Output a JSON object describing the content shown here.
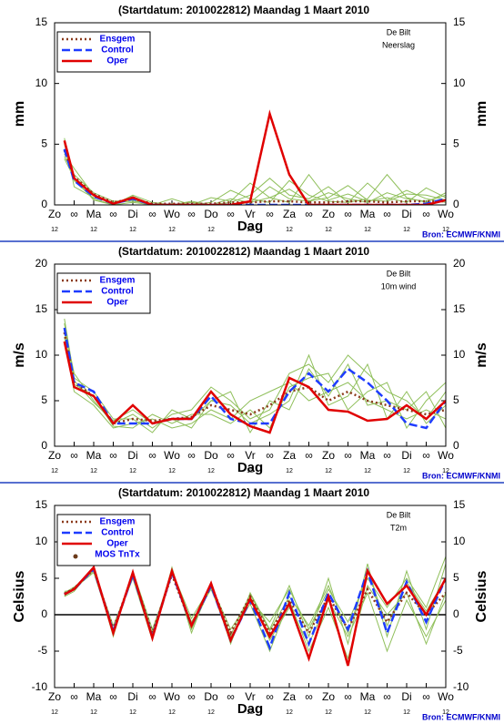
{
  "chart_data": [
    {
      "type": "line",
      "title": "(Startdatum: 2010022812)   Maandag    1 Maart    2010",
      "ylabel": "mm",
      "xlabel": "Dag",
      "source": "Bron: ECMWF/KNMI",
      "annotation": [
        "De Bilt",
        "Neerslag"
      ],
      "xlim": [
        0,
        10
      ],
      "ylim": [
        0,
        15
      ],
      "yticks": [
        0,
        5,
        10,
        15
      ],
      "y2ticks": [
        0,
        5,
        10,
        15
      ],
      "zero_line": false,
      "xticks": [
        {
          "value": 0,
          "label": "Zo"
        },
        {
          "value": 0.5,
          "label": "∞"
        },
        {
          "value": 1,
          "label": "Ma"
        },
        {
          "value": 1.5,
          "label": "∞"
        },
        {
          "value": 2,
          "label": "Di"
        },
        {
          "value": 2.5,
          "label": "∞"
        },
        {
          "value": 3,
          "label": "Wo"
        },
        {
          "value": 3.5,
          "label": "∞"
        },
        {
          "value": 4,
          "label": "Do"
        },
        {
          "value": 4.5,
          "label": "∞"
        },
        {
          "value": 5,
          "label": "Vr"
        },
        {
          "value": 5.5,
          "label": "∞"
        },
        {
          "value": 6,
          "label": "Za"
        },
        {
          "value": 6.5,
          "label": "∞"
        },
        {
          "value": 7,
          "label": "Zo"
        },
        {
          "value": 7.5,
          "label": "∞"
        },
        {
          "value": 8,
          "label": "Ma"
        },
        {
          "value": 8.5,
          "label": "∞"
        },
        {
          "value": 9,
          "label": "Di"
        },
        {
          "value": 9.5,
          "label": "∞"
        },
        {
          "value": 10,
          "label": "Wo"
        }
      ],
      "hour_ticks": [
        {
          "value": 0,
          "label": "12"
        },
        {
          "value": 1,
          "label": "12"
        },
        {
          "value": 2,
          "label": "12"
        },
        {
          "value": 3,
          "label": "12"
        },
        {
          "value": 4,
          "label": "12"
        },
        {
          "value": 5,
          "label": "12"
        },
        {
          "value": 6,
          "label": "12"
        },
        {
          "value": 7,
          "label": "12"
        },
        {
          "value": 8,
          "label": "12"
        },
        {
          "value": 9,
          "label": "12"
        },
        {
          "value": 10,
          "label": "12"
        }
      ],
      "x": [
        0.25,
        0.5,
        1,
        1.5,
        2,
        2.5,
        3,
        3.5,
        4,
        4.5,
        5,
        5.5,
        6,
        6.5,
        7,
        7.5,
        8,
        8.5,
        9,
        9.5,
        10
      ],
      "member_color": "#8fbf5a",
      "members": [
        [
          5,
          2,
          0.5,
          0,
          0.8,
          0.2,
          0,
          0.3,
          0,
          0.5,
          0.2,
          1.5,
          0.5,
          0.3,
          1,
          0.5,
          0.2,
          1,
          0.5,
          0.3,
          0.8
        ],
        [
          4,
          2.5,
          1,
          0.3,
          0.4,
          0,
          0.5,
          0,
          0.2,
          1.2,
          0.5,
          0.2,
          2,
          0.8,
          0.3,
          0.2,
          1.8,
          0.4,
          1.2,
          0.5,
          0.2
        ],
        [
          5.5,
          1.5,
          0.6,
          0.2,
          0.3,
          0.1,
          0,
          0,
          0.6,
          0.3,
          1.8,
          0.6,
          0.2,
          2.5,
          0.4,
          0.9,
          0.3,
          0.6,
          0.2,
          1.4,
          0.6
        ],
        [
          4.2,
          3,
          0.8,
          0.1,
          0.7,
          0,
          0.1,
          0,
          0,
          0.2,
          0.8,
          2.2,
          0.8,
          0.5,
          1.5,
          0.2,
          0.5,
          2.5,
          0.6,
          0.2,
          1
        ],
        [
          3.8,
          2.2,
          0.4,
          0,
          0.2,
          0,
          0,
          0.2,
          0,
          0,
          0.2,
          0.6,
          1.3,
          0.3,
          0.6,
          1.6,
          0.4,
          0.3,
          0.9,
          0.8,
          0.4
        ]
      ],
      "series": [
        {
          "name": "Ensgem",
          "color": "#8b3a1a",
          "style": "dotted",
          "values": [
            4.5,
            2.3,
            0.9,
            0.2,
            0.5,
            0.1,
            0.1,
            0.1,
            0.1,
            0.2,
            0.2,
            0.3,
            0.3,
            0.2,
            0.2,
            0.3,
            0.3,
            0.2,
            0.3,
            0.3,
            0.3
          ]
        },
        {
          "name": "Control",
          "color": "#1e3cff",
          "style": "dashed",
          "values": [
            4.6,
            2.0,
            0.7,
            0.1,
            0.5,
            0,
            0,
            0,
            0,
            0,
            0,
            0,
            0,
            0,
            0,
            0,
            0,
            0,
            0,
            0.1,
            0.5
          ]
        },
        {
          "name": "Oper",
          "color": "#e00000",
          "style": "solid",
          "values": [
            5.3,
            2.2,
            0.8,
            0.1,
            0.6,
            0,
            0,
            0,
            0,
            0,
            0.3,
            7.5,
            2.5,
            0,
            0,
            0,
            0,
            0,
            0,
            0,
            0.4
          ]
        }
      ]
    },
    {
      "type": "line",
      "title": "(Startdatum: 2010022812)   Maandag    1 Maart    2010",
      "ylabel": "m/s",
      "xlabel": "Dag",
      "source": "Bron: ECMWF/KNMI",
      "annotation": [
        "De Bilt",
        "10m wind"
      ],
      "xlim": [
        0,
        10
      ],
      "ylim": [
        0,
        20
      ],
      "yticks": [
        0,
        5,
        10,
        15,
        20
      ],
      "y2ticks": [
        0,
        5,
        10,
        15,
        20
      ],
      "zero_line": false,
      "xticks": [
        {
          "value": 0,
          "label": "Zo"
        },
        {
          "value": 0.5,
          "label": "∞"
        },
        {
          "value": 1,
          "label": "Ma"
        },
        {
          "value": 1.5,
          "label": "∞"
        },
        {
          "value": 2,
          "label": "Di"
        },
        {
          "value": 2.5,
          "label": "∞"
        },
        {
          "value": 3,
          "label": "Wo"
        },
        {
          "value": 3.5,
          "label": "∞"
        },
        {
          "value": 4,
          "label": "Do"
        },
        {
          "value": 4.5,
          "label": "∞"
        },
        {
          "value": 5,
          "label": "Vr"
        },
        {
          "value": 5.5,
          "label": "∞"
        },
        {
          "value": 6,
          "label": "Za"
        },
        {
          "value": 6.5,
          "label": "∞"
        },
        {
          "value": 7,
          "label": "Zo"
        },
        {
          "value": 7.5,
          "label": "∞"
        },
        {
          "value": 8,
          "label": "Ma"
        },
        {
          "value": 8.5,
          "label": "∞"
        },
        {
          "value": 9,
          "label": "Di"
        },
        {
          "value": 9.5,
          "label": "∞"
        },
        {
          "value": 10,
          "label": "Wo"
        }
      ],
      "hour_ticks": [
        {
          "value": 0,
          "label": "12"
        },
        {
          "value": 1,
          "label": "12"
        },
        {
          "value": 2,
          "label": "12"
        },
        {
          "value": 3,
          "label": "12"
        },
        {
          "value": 4,
          "label": "12"
        },
        {
          "value": 5,
          "label": "12"
        },
        {
          "value": 6,
          "label": "12"
        },
        {
          "value": 7,
          "label": "12"
        },
        {
          "value": 8,
          "label": "12"
        },
        {
          "value": 9,
          "label": "12"
        },
        {
          "value": 10,
          "label": "12"
        }
      ],
      "x": [
        0.25,
        0.5,
        1,
        1.5,
        2,
        2.5,
        3,
        3.5,
        4,
        4.5,
        5,
        5.5,
        6,
        6.5,
        7,
        7.5,
        8,
        8.5,
        9,
        9.5,
        10
      ],
      "member_color": "#8fbf5a",
      "members": [
        [
          13,
          8,
          5,
          2.5,
          3.5,
          2,
          3.5,
          4,
          6.5,
          5,
          3,
          4,
          8,
          9,
          7,
          10,
          8,
          6,
          5,
          3,
          6
        ],
        [
          12,
          6,
          4.5,
          2,
          2.5,
          3,
          2,
          2.5,
          4,
          3,
          5,
          6,
          7,
          5,
          6,
          7,
          5,
          4,
          3,
          4,
          3
        ],
        [
          14,
          7.5,
          6,
          3,
          3,
          1.5,
          4,
          3,
          5,
          4.5,
          2.5,
          3.5,
          5,
          10,
          4.5,
          5.5,
          9,
          3,
          6,
          2.5,
          4.5
        ],
        [
          12.5,
          6.8,
          5.5,
          2.2,
          2,
          3.5,
          2.5,
          3.5,
          3.5,
          2.5,
          4,
          2,
          6.5,
          7.5,
          8,
          4,
          6,
          7,
          2,
          5,
          7
        ],
        [
          13.5,
          7.2,
          4.8,
          2.8,
          4,
          2.5,
          3,
          2,
          5,
          6,
          1.5,
          5,
          4,
          8.5,
          5.5,
          9,
          4.5,
          5,
          4,
          6,
          2
        ]
      ],
      "series": [
        {
          "name": "Ensgem",
          "color": "#8b3a1a",
          "style": "dotted",
          "values": [
            12.5,
            7,
            5.5,
            2.5,
            3,
            2.8,
            3,
            3.2,
            4.5,
            4,
            3.5,
            4.5,
            6,
            6.5,
            5,
            6,
            5,
            4.5,
            4,
            3.5,
            4
          ]
        },
        {
          "name": "Control",
          "color": "#1e3cff",
          "style": "dashed",
          "values": [
            13,
            7,
            6,
            2.5,
            2.5,
            2.5,
            3,
            3,
            5.5,
            3,
            2.5,
            2.5,
            6,
            8,
            6,
            8.5,
            7,
            5,
            2.5,
            2,
            5
          ]
        },
        {
          "name": "Oper",
          "color": "#e00000",
          "style": "solid",
          "values": [
            11.5,
            6.5,
            5.5,
            2.5,
            4.5,
            2.5,
            3,
            3,
            6,
            3.5,
            2.2,
            1.5,
            7.5,
            6.5,
            4,
            3.8,
            2.8,
            3,
            4.5,
            3,
            5
          ]
        }
      ]
    },
    {
      "type": "line",
      "title": "(Startdatum: 2010022812)   Maandag    1 Maart    2010",
      "ylabel": "Celsius",
      "xlabel": "Dag",
      "source": "Bron: ECMWF/KNMI",
      "annotation": [
        "De Bilt",
        "T2m"
      ],
      "xlim": [
        0,
        10
      ],
      "ylim": [
        -10,
        15
      ],
      "yticks": [
        -10,
        -5,
        0,
        5,
        10,
        15
      ],
      "y2ticks": [
        -10,
        -5,
        0,
        5,
        10,
        15
      ],
      "zero_line": true,
      "xticks": [
        {
          "value": 0,
          "label": "Zo"
        },
        {
          "value": 0.5,
          "label": "∞"
        },
        {
          "value": 1,
          "label": "Ma"
        },
        {
          "value": 1.5,
          "label": "∞"
        },
        {
          "value": 2,
          "label": "Di"
        },
        {
          "value": 2.5,
          "label": "∞"
        },
        {
          "value": 3,
          "label": "Wo"
        },
        {
          "value": 3.5,
          "label": "∞"
        },
        {
          "value": 4,
          "label": "Do"
        },
        {
          "value": 4.5,
          "label": "∞"
        },
        {
          "value": 5,
          "label": "Vr"
        },
        {
          "value": 5.5,
          "label": "∞"
        },
        {
          "value": 6,
          "label": "Za"
        },
        {
          "value": 6.5,
          "label": "∞"
        },
        {
          "value": 7,
          "label": "Zo"
        },
        {
          "value": 7.5,
          "label": "∞"
        },
        {
          "value": 8,
          "label": "Ma"
        },
        {
          "value": 8.5,
          "label": "∞"
        },
        {
          "value": 9,
          "label": "Di"
        },
        {
          "value": 9.5,
          "label": "∞"
        },
        {
          "value": 10,
          "label": "Wo"
        }
      ],
      "hour_ticks": [
        {
          "value": 0,
          "label": "12"
        },
        {
          "value": 1,
          "label": "12"
        },
        {
          "value": 2,
          "label": "12"
        },
        {
          "value": 3,
          "label": "12"
        },
        {
          "value": 4,
          "label": "12"
        },
        {
          "value": 5,
          "label": "12"
        },
        {
          "value": 6,
          "label": "12"
        },
        {
          "value": 7,
          "label": "12"
        },
        {
          "value": 8,
          "label": "12"
        },
        {
          "value": 9,
          "label": "12"
        },
        {
          "value": 10,
          "label": "12"
        }
      ],
      "x": [
        0.25,
        0.5,
        1,
        1.5,
        2,
        2.5,
        3,
        3.5,
        4,
        4.5,
        5,
        5.5,
        6,
        6.5,
        7,
        7.5,
        8,
        8.5,
        9,
        9.5,
        10
      ],
      "member_color": "#8fbf5a",
      "members": [
        [
          3,
          3.8,
          6,
          -2,
          5,
          -3.5,
          6.5,
          -2.5,
          4.5,
          -4,
          3,
          -2,
          4,
          -3,
          5,
          -4,
          7,
          -3,
          6,
          -2,
          7
        ],
        [
          2.5,
          3.2,
          6.5,
          -3,
          6,
          -2,
          5.5,
          -1,
          3.5,
          -3,
          1.5,
          -5,
          2,
          -5,
          1,
          -6,
          4,
          0,
          3,
          -4,
          3
        ],
        [
          2.8,
          3.6,
          5.8,
          -2.5,
          5.5,
          -2.8,
          6,
          -0.5,
          4,
          -2,
          2,
          -1,
          3.5,
          -2,
          3.5,
          -1,
          5,
          1,
          5,
          1,
          8
        ],
        [
          3.2,
          3.4,
          6.2,
          -1.5,
          5.2,
          -3,
          5.8,
          -2,
          3.8,
          -3.8,
          2.5,
          -3.5,
          1,
          -4,
          2,
          -3,
          3,
          -5,
          2,
          -3,
          2
        ],
        [
          2.6,
          3.7,
          6.4,
          -2.2,
          5.8,
          -2.5,
          6.2,
          -1.8,
          4.2,
          -2.8,
          2.8,
          -2.2,
          2.5,
          -1.5,
          4,
          -2.5,
          6,
          -1.5,
          4.5,
          0.5,
          5
        ]
      ],
      "series": [
        {
          "name": "Ensgem",
          "color": "#8b3a1a",
          "style": "dotted",
          "values": [
            2.9,
            3.6,
            6.2,
            -2,
            5.5,
            -2.5,
            5.5,
            -1.5,
            4,
            -2.5,
            2.5,
            -2.5,
            2,
            -2.5,
            2.5,
            -2,
            3.5,
            -1,
            3,
            0,
            3
          ]
        },
        {
          "name": "Control",
          "color": "#1e3cff",
          "style": "dashed",
          "values": [
            2.8,
            3.5,
            6.3,
            -2.3,
            5.5,
            -3,
            5.8,
            -1.5,
            4,
            -3.5,
            2,
            -4.5,
            3,
            -4,
            3,
            -2,
            6,
            -2.5,
            4.5,
            -1,
            5
          ]
        },
        {
          "name": "Oper",
          "color": "#e00000",
          "style": "solid",
          "values": [
            2.8,
            3.5,
            6.5,
            -2.5,
            5.8,
            -3.2,
            6,
            -1.5,
            4.3,
            -3.5,
            2.2,
            -3,
            1.5,
            -6,
            2.5,
            -7,
            6,
            1.5,
            4,
            0,
            5
          ]
        },
        {
          "name": "MOS TnTx",
          "color": "#6b3a1a",
          "style": "dot-marker",
          "values": [
            null,
            null,
            null,
            null,
            null,
            null,
            null,
            null,
            null,
            null,
            null,
            null,
            null,
            null,
            null,
            null,
            null,
            null,
            null,
            null,
            null
          ]
        }
      ]
    }
  ]
}
